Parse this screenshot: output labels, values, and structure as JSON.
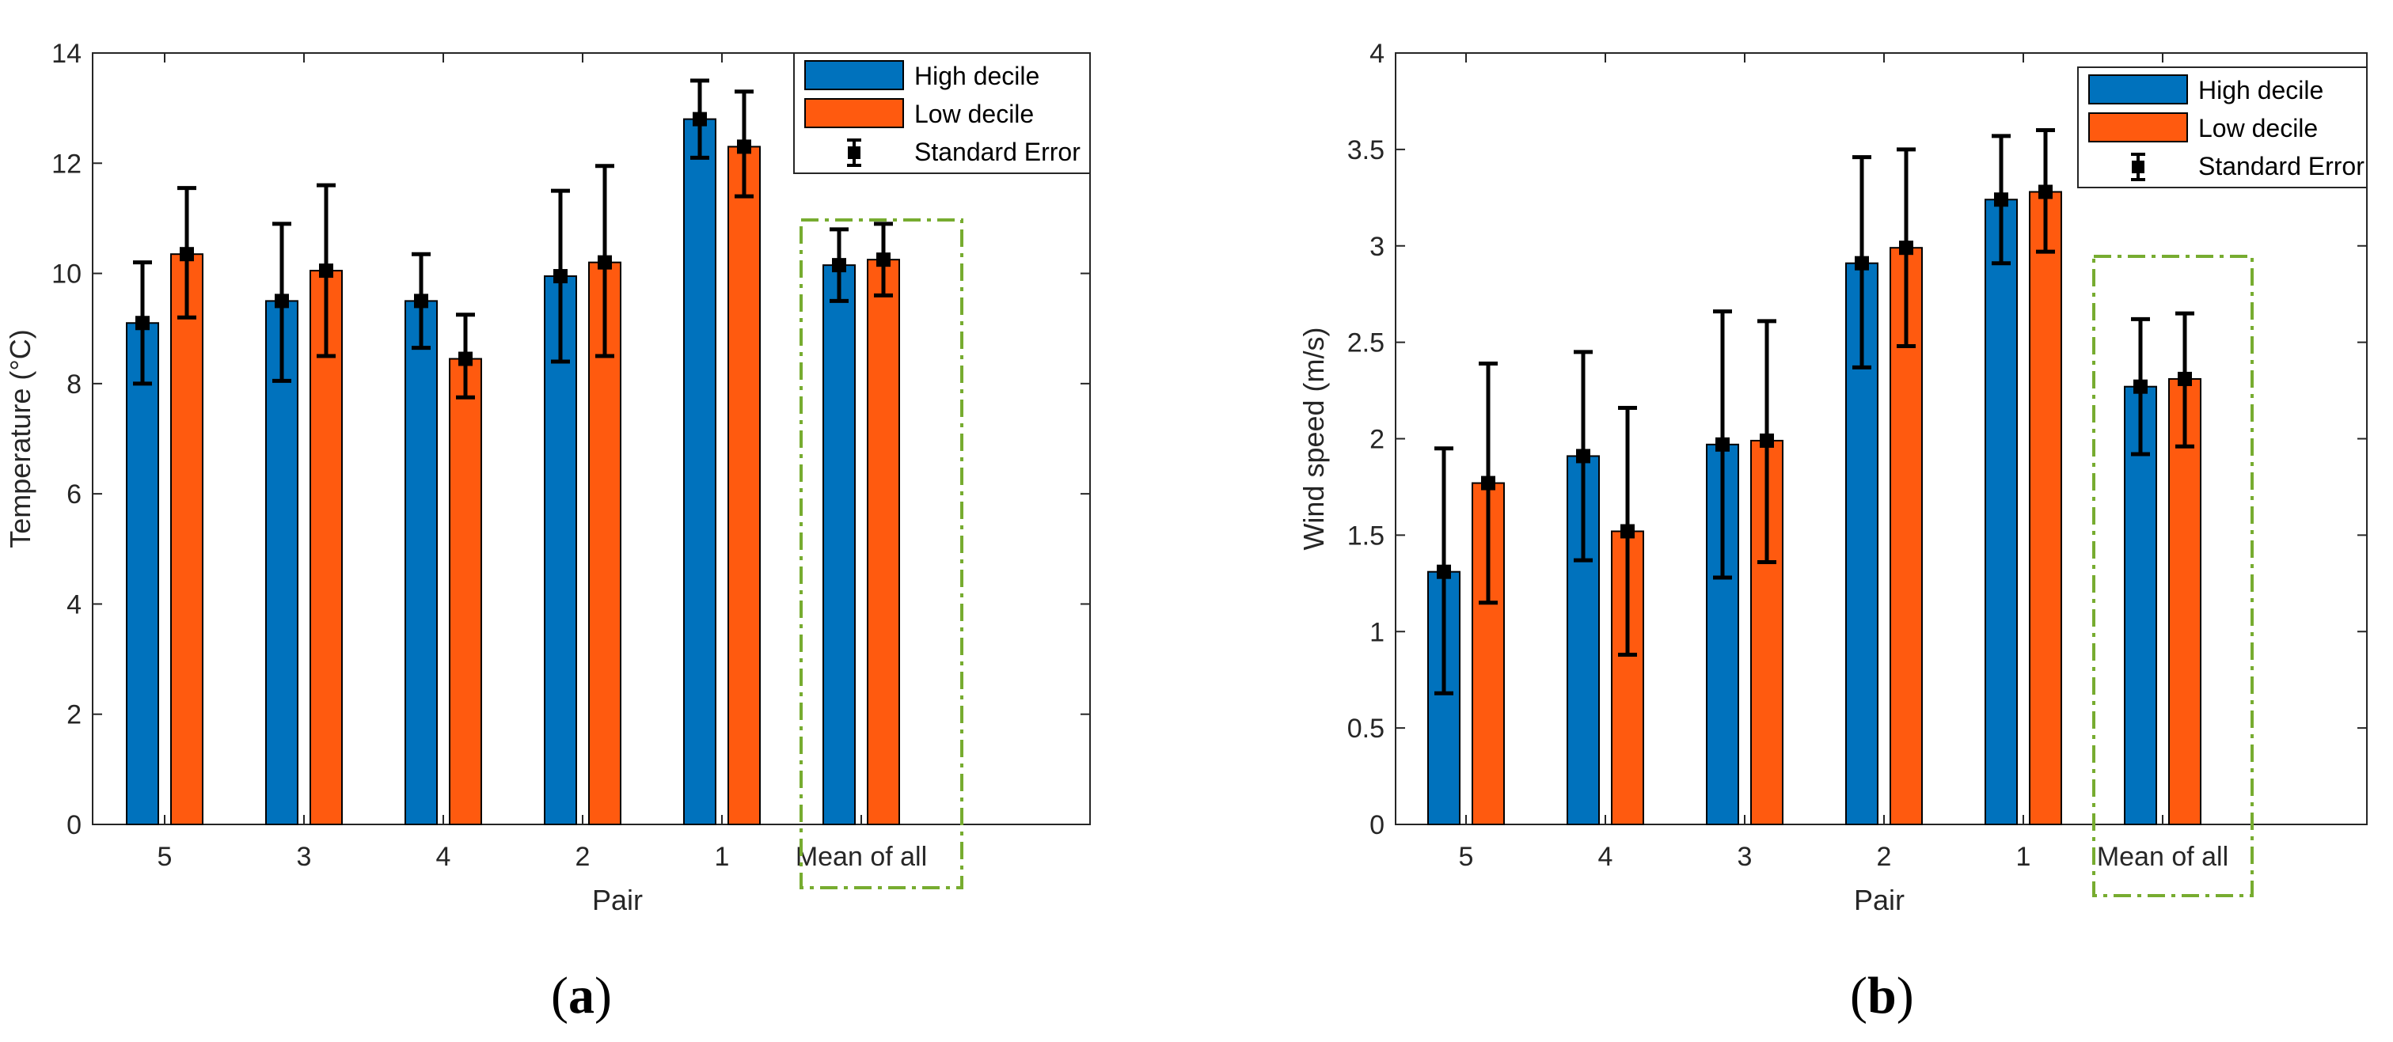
{
  "colors": {
    "high": "#0072BD",
    "low": "#FF5A0F",
    "error": "#000000",
    "highlight_box": "#77AC30",
    "axis": "#262626"
  },
  "legend_entries": {
    "high": "High decile",
    "low": "Low decile",
    "error": "Standard Error"
  },
  "panels": [
    {
      "label_open": "(",
      "label_letter": "a",
      "label_close": ")"
    },
    {
      "label_open": "(",
      "label_letter": "b",
      "label_close": ")"
    }
  ],
  "chart_data": [
    {
      "type": "bar",
      "xlabel": "Pair",
      "ylabel": "Temperature (°C)",
      "ylim": [
        0,
        14
      ],
      "yticks": [
        0,
        2,
        4,
        6,
        8,
        10,
        12,
        14
      ],
      "categories": [
        "5",
        "3",
        "4",
        "2",
        "1",
        "Mean of all"
      ],
      "highlighted_category": "Mean of all",
      "legend_position": "top-right",
      "grid": false,
      "series": [
        {
          "name": "High decile",
          "values": [
            9.1,
            9.5,
            9.5,
            9.95,
            12.8,
            10.15
          ],
          "error_low": [
            8.0,
            8.05,
            8.65,
            8.4,
            12.1,
            9.5
          ],
          "error_high": [
            10.2,
            10.9,
            10.35,
            11.5,
            13.5,
            10.8
          ]
        },
        {
          "name": "Low decile",
          "values": [
            10.35,
            10.05,
            8.45,
            10.2,
            12.3,
            10.25
          ],
          "error_low": [
            9.2,
            8.5,
            7.75,
            8.5,
            11.4,
            9.6
          ],
          "error_high": [
            11.55,
            11.6,
            9.25,
            11.95,
            13.3,
            10.9
          ]
        }
      ]
    },
    {
      "type": "bar",
      "xlabel": "Pair",
      "ylabel": "Wind speed (m/s)",
      "ylim": [
        0,
        4
      ],
      "yticks": [
        0,
        0.5,
        1,
        1.5,
        2,
        2.5,
        3,
        3.5,
        4
      ],
      "categories": [
        "5",
        "4",
        "3",
        "2",
        "1",
        "Mean of all"
      ],
      "highlighted_category": "Mean of all",
      "legend_position": "top-right",
      "grid": false,
      "series": [
        {
          "name": "High decile",
          "values": [
            1.31,
            1.91,
            1.97,
            2.91,
            3.24,
            2.27
          ],
          "error_low": [
            0.68,
            1.37,
            1.28,
            2.37,
            2.91,
            1.92
          ],
          "error_high": [
            1.95,
            2.45,
            2.66,
            3.46,
            3.57,
            2.62
          ]
        },
        {
          "name": "Low decile",
          "values": [
            1.77,
            1.52,
            1.99,
            2.99,
            3.28,
            2.31
          ],
          "error_low": [
            1.15,
            0.88,
            1.36,
            2.48,
            2.97,
            1.96
          ],
          "error_high": [
            2.39,
            2.16,
            2.61,
            3.5,
            3.6,
            2.65
          ]
        }
      ]
    }
  ]
}
